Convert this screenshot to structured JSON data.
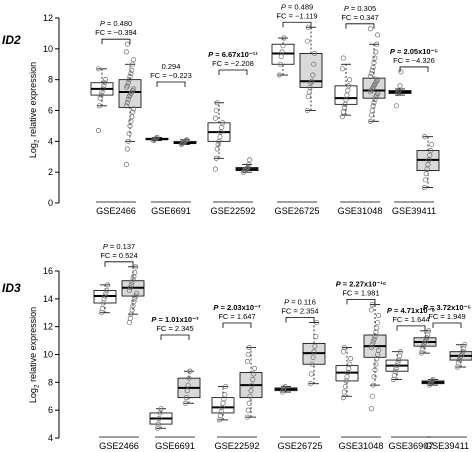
{
  "chart_data": [
    {
      "type": "boxplot",
      "gene": "ID2",
      "ylabel_prefix": "Log",
      "ylabel_sub": "2",
      "ylabel_suffix": " relative expression",
      "ylim": [
        0,
        12
      ],
      "yticks": [
        0,
        2,
        4,
        6,
        8,
        10,
        12
      ],
      "groups": [
        {
          "label": "GSE2466",
          "p_prefix": "P",
          "p_value": " = 0.480",
          "p_bold": false,
          "fc": "FC = −0.394",
          "boxes": [
            {
              "color": "white",
              "q1": 7.0,
              "median": 7.4,
              "q3": 7.8,
              "lo": 6.3,
              "hi": 8.7,
              "points": [
                4.7,
                6.3,
                6.8,
                7.0,
                7.2,
                7.4,
                7.6,
                7.8,
                8.0,
                8.7
              ]
            },
            {
              "color": "gray",
              "q1": 6.2,
              "median": 7.2,
              "q3": 8.0,
              "lo": 4.0,
              "hi": 9.0,
              "points": [
                2.5,
                3.5,
                4.0,
                4.5,
                5.0,
                5.3,
                5.6,
                5.9,
                6.1,
                6.3,
                6.5,
                6.7,
                6.9,
                7.0,
                7.1,
                7.2,
                7.3,
                7.4,
                7.5,
                7.6,
                7.8,
                8.0,
                8.2,
                8.4,
                8.6,
                9.0,
                9.3,
                9.8,
                10.3
              ]
            }
          ]
        },
        {
          "label": "GSE6691",
          "p_prefix": "",
          "p_value": "0.294",
          "p_bold": false,
          "fc": "FC = −0.223",
          "boxes": [
            {
              "color": "white",
              "q1": 4.1,
              "median": 4.15,
              "q3": 4.2,
              "lo": 4.05,
              "hi": 4.25,
              "points": [
                4.05,
                4.1,
                4.15,
                4.2,
                4.25
              ]
            },
            {
              "color": "gray",
              "q1": 3.85,
              "median": 3.9,
              "q3": 4.0,
              "lo": 3.8,
              "hi": 4.1,
              "points": [
                3.8,
                3.85,
                3.9,
                3.95,
                4.0,
                4.05,
                4.1
              ]
            }
          ]
        },
        {
          "label": "GSE22592",
          "p_prefix": "P",
          "p_value": " = 6.67x10⁻¹¹",
          "p_bold": true,
          "fc": "FC = −2.208",
          "boxes": [
            {
              "color": "white",
              "q1": 4.0,
              "median": 4.6,
              "q3": 5.2,
              "lo": 2.9,
              "hi": 6.5,
              "points": [
                2.2,
                2.9,
                3.5,
                3.8,
                4.0,
                4.3,
                4.6,
                4.9,
                5.2,
                5.5,
                6.0,
                6.5
              ]
            },
            {
              "color": "gray",
              "q1": 2.1,
              "median": 2.2,
              "q3": 2.3,
              "lo": 2.0,
              "hi": 2.5,
              "points": [
                2.0,
                2.1,
                2.15,
                2.2,
                2.25,
                2.3,
                2.5,
                2.8
              ]
            }
          ]
        },
        {
          "label": "GSE26725",
          "p_prefix": "P",
          "p_value": " = 0.489",
          "p_bold": false,
          "fc": "FC = −1.119",
          "boxes": [
            {
              "color": "white",
              "q1": 9.0,
              "median": 9.7,
              "q3": 10.3,
              "lo": 8.3,
              "hi": 10.7,
              "points": [
                8.3,
                9.0,
                9.5,
                9.8,
                10.2,
                10.7
              ]
            },
            {
              "color": "gray",
              "q1": 7.5,
              "median": 7.9,
              "q3": 9.7,
              "lo": 6.0,
              "hi": 11.4,
              "points": [
                6.0,
                6.9,
                7.2,
                7.5,
                7.8,
                7.9,
                8.3,
                9.0,
                9.7,
                10.5,
                11.4
              ]
            }
          ]
        },
        {
          "label": "GSE31048",
          "p_prefix": "P",
          "p_value": " = 0.305",
          "p_bold": false,
          "fc": "FC = 0.347",
          "boxes": [
            {
              "color": "white",
              "q1": 6.4,
              "median": 6.8,
              "q3": 7.6,
              "lo": 5.7,
              "hi": 9.0,
              "points": [
                5.6,
                5.9,
                6.2,
                6.4,
                6.7,
                7.0,
                7.3,
                7.6,
                8.0,
                8.7,
                9.4
              ]
            },
            {
              "color": "gray",
              "q1": 6.8,
              "median": 7.3,
              "q3": 8.1,
              "lo": 5.3,
              "hi": 10.3,
              "points": [
                5.3,
                5.7,
                6.0,
                6.3,
                6.5,
                6.7,
                6.9,
                7.0,
                7.1,
                7.2,
                7.3,
                7.4,
                7.5,
                7.6,
                7.7,
                7.8,
                7.9,
                8.0,
                8.2,
                8.4,
                8.6,
                8.8,
                9.1,
                9.4,
                9.8,
                10.3,
                10.9,
                11.3
              ]
            }
          ]
        },
        {
          "label": "GSE39411",
          "p_prefix": "P",
          "p_value": " = 2.05x10⁻⁵",
          "p_bold": true,
          "fc": "FC = −4.326",
          "boxes": [
            {
              "color": "white",
              "q1": 7.1,
              "median": 7.2,
              "q3": 7.3,
              "lo": 7.0,
              "hi": 7.4,
              "points": [
                6.3,
                7.1,
                7.2,
                7.3,
                7.6,
                8.5
              ]
            },
            {
              "color": "gray",
              "q1": 2.1,
              "median": 2.8,
              "q3": 3.4,
              "lo": 1.0,
              "hi": 4.3,
              "points": [
                1.0,
                1.5,
                1.9,
                2.2,
                2.5,
                2.8,
                3.1,
                3.4,
                3.8,
                4.3
              ]
            }
          ]
        }
      ]
    },
    {
      "type": "boxplot",
      "gene": "ID3",
      "ylabel_prefix": "Log",
      "ylabel_sub": "2",
      "ylabel_suffix": " relative expression",
      "ylim": [
        4,
        16
      ],
      "yticks": [
        4,
        6,
        8,
        10,
        12,
        14,
        16
      ],
      "groups": [
        {
          "label": "GSE2466",
          "p_prefix": "P",
          "p_value": " = 0.137",
          "p_bold": false,
          "fc": "FC = 0.524",
          "boxes": [
            {
              "color": "white",
              "q1": 13.7,
              "median": 14.2,
              "q3": 14.6,
              "lo": 13.0,
              "hi": 15.0,
              "points": [
                13.0,
                13.3,
                13.7,
                14.0,
                14.2,
                14.4,
                14.6,
                15.0
              ]
            },
            {
              "color": "gray",
              "q1": 14.2,
              "median": 14.8,
              "q3": 15.3,
              "lo": 12.9,
              "hi": 16.3,
              "points": [
                12.3,
                12.6,
                12.9,
                13.2,
                13.5,
                13.8,
                14.0,
                14.2,
                14.4,
                14.6,
                14.8,
                15.0,
                15.2,
                15.4,
                15.6,
                15.9,
                16.3
              ]
            }
          ]
        },
        {
          "label": "GSE6691",
          "p_prefix": "P",
          "p_value": " = 1.01x10⁻³",
          "p_bold": true,
          "fc": "FC = 2.345",
          "boxes": [
            {
              "color": "white",
              "q1": 5.0,
              "median": 5.4,
              "q3": 5.8,
              "lo": 4.7,
              "hi": 6.1,
              "points": [
                4.7,
                5.0,
                5.4,
                5.8,
                6.1
              ]
            },
            {
              "color": "gray",
              "q1": 6.9,
              "median": 7.6,
              "q3": 8.3,
              "lo": 6.5,
              "hi": 8.8,
              "points": [
                6.5,
                6.9,
                7.4,
                7.8,
                8.3,
                8.8
              ]
            }
          ]
        },
        {
          "label": "GSE22592",
          "p_prefix": "P",
          "p_value": " = 2.03x10⁻³",
          "p_bold": true,
          "fc": "FC = 1.647",
          "boxes": [
            {
              "color": "white",
              "q1": 5.8,
              "median": 6.2,
              "q3": 6.9,
              "lo": 5.3,
              "hi": 7.7,
              "points": [
                5.3,
                5.6,
                5.9,
                6.2,
                6.5,
                6.8,
                7.1,
                7.7
              ]
            },
            {
              "color": "gray",
              "q1": 6.9,
              "median": 7.8,
              "q3": 8.7,
              "lo": 5.5,
              "hi": 10.5,
              "points": [
                5.5,
                6.0,
                6.5,
                7.0,
                7.4,
                7.8,
                8.2,
                8.6,
                9.0,
                9.5,
                10.0,
                10.5
              ]
            }
          ]
        },
        {
          "label": "GSE26725",
          "p_prefix": "P",
          "p_value": " = 0.116",
          "p_bold": false,
          "fc": "FC = 2.354",
          "boxes": [
            {
              "color": "white",
              "q1": 7.4,
              "median": 7.5,
              "q3": 7.6,
              "lo": 7.3,
              "hi": 7.7,
              "points": [
                7.3,
                7.45,
                7.6,
                7.7
              ]
            },
            {
              "color": "gray",
              "q1": 9.3,
              "median": 10.1,
              "q3": 10.8,
              "lo": 7.9,
              "hi": 12.3,
              "points": [
                7.9,
                8.6,
                9.3,
                9.8,
                10.2,
                10.6,
                11.3,
                12.3
              ]
            }
          ]
        },
        {
          "label": "GSE31048",
          "p_prefix": "P",
          "p_value": " = 2.27x10⁻¹⁶",
          "p_bold": true,
          "fc": "FC = 1.981",
          "boxes": [
            {
              "color": "white",
              "q1": 8.1,
              "median": 8.7,
              "q3": 9.2,
              "lo": 7.0,
              "hi": 10.5,
              "points": [
                6.9,
                7.3,
                7.7,
                8.1,
                8.4,
                8.7,
                9.0,
                9.3,
                9.7,
                10.2,
                10.5
              ]
            },
            {
              "color": "gray",
              "q1": 9.8,
              "median": 10.6,
              "q3": 11.4,
              "lo": 7.8,
              "hi": 13.6,
              "points": [
                6.1,
                7.0,
                7.8,
                8.4,
                8.9,
                9.3,
                9.7,
                10.0,
                10.3,
                10.5,
                10.7,
                10.9,
                11.1,
                11.3,
                11.6,
                11.9,
                12.3,
                12.8,
                13.2,
                13.6
              ]
            }
          ]
        },
        {
          "label": "GSE36907",
          "p_prefix": "P",
          "p_value": " = 4.71x10⁻⁸",
          "p_bold": true,
          "fc": "FC = 1.644",
          "boxes": [
            {
              "color": "white",
              "q1": 8.8,
              "median": 9.2,
              "q3": 9.6,
              "lo": 8.2,
              "hi": 10.2,
              "points": [
                8.2,
                8.5,
                8.8,
                9.0,
                9.2,
                9.4,
                9.6,
                9.9,
                10.2
              ]
            },
            {
              "color": "gray",
              "q1": 10.6,
              "median": 10.9,
              "q3": 11.2,
              "lo": 10.1,
              "hi": 11.7,
              "points": [
                10.1,
                10.4,
                10.6,
                10.8,
                10.9,
                11.0,
                11.2,
                11.4,
                11.7
              ]
            }
          ]
        },
        {
          "label": "GSE39411",
          "p_prefix": "P",
          "p_value": " = 3.72x10⁻⁵",
          "p_bold": true,
          "fc": "FC = 1.949",
          "boxes": [
            {
              "color": "white",
              "q1": 7.9,
              "median": 8.0,
              "q3": 8.1,
              "lo": 7.8,
              "hi": 8.2,
              "points": [
                7.8,
                7.9,
                8.0,
                8.1,
                8.2
              ]
            },
            {
              "color": "gray",
              "q1": 9.6,
              "median": 9.9,
              "q3": 10.2,
              "lo": 9.1,
              "hi": 10.7,
              "points": [
                9.1,
                9.4,
                9.6,
                9.8,
                9.9,
                10.0,
                10.2,
                10.4,
                10.7
              ]
            }
          ]
        }
      ]
    }
  ],
  "colors": {
    "white_box": "#ffffff",
    "gray_box": "#d9d9d9",
    "stroke": "#000000",
    "point": "#6b6b6b"
  }
}
